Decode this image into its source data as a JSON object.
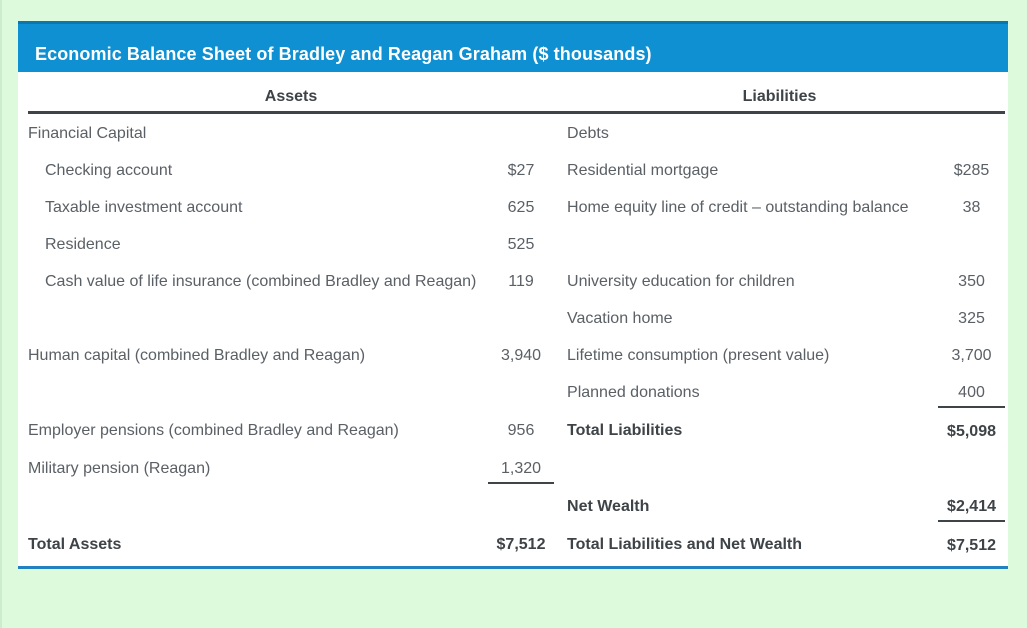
{
  "header": {
    "title": "Economic Balance Sheet of Bradley and Reagan Graham ($ thousands)"
  },
  "columns": {
    "assets": "Assets",
    "liabilities": "Liabilities"
  },
  "rows": [
    {
      "asset_label": "Financial Capital",
      "asset_value": "",
      "liability_label": "Debts",
      "liability_value": ""
    },
    {
      "asset_label": "Checking account",
      "asset_value": "$27",
      "liability_label": "Residential mortgage",
      "liability_value": "$285"
    },
    {
      "asset_label": "Taxable investment account",
      "asset_value": "625",
      "liability_label": "Home equity line of credit – outstanding balance",
      "liability_value": "38"
    },
    {
      "asset_label": "Residence",
      "asset_value": "525",
      "liability_label": "",
      "liability_value": ""
    },
    {
      "asset_label": "Cash value of life insurance (combined Bradley and Reagan)",
      "asset_value": "119",
      "liability_label": "University education for children",
      "liability_value": "350"
    },
    {
      "asset_label": "",
      "asset_value": "",
      "liability_label": "Vacation home",
      "liability_value": "325"
    },
    {
      "asset_label": "Human capital (combined Bradley and Reagan)",
      "asset_value": "3,940",
      "liability_label": "Lifetime consumption (present value)",
      "liability_value": "3,700"
    },
    {
      "asset_label": "",
      "asset_value": "",
      "liability_label": "Planned donations",
      "liability_value": "400"
    },
    {
      "asset_label": "Employer pensions (combined Bradley and Reagan)",
      "asset_value": "956",
      "liability_label": "Total Liabilities",
      "liability_value": "$5,098"
    },
    {
      "asset_label": "Military pension (Reagan)",
      "asset_value": "1,320",
      "liability_label": "",
      "liability_value": ""
    },
    {
      "asset_label": "",
      "asset_value": "",
      "liability_label": "Net Wealth",
      "liability_value": "$2,414"
    },
    {
      "asset_label": "Total Assets",
      "asset_value": "$7,512",
      "liability_label": "Total Liabilities and Net Wealth",
      "liability_value": "$7,512"
    }
  ],
  "colors": {
    "header_blue": "#0f90d2",
    "header_blue_border": "#0d76ad",
    "page_green": "#ddfbdc",
    "rule_dark": "#3f4449",
    "bottom_blue": "#2381bf",
    "text_gray": "#5a6065",
    "text_bold": "#3e4347"
  }
}
